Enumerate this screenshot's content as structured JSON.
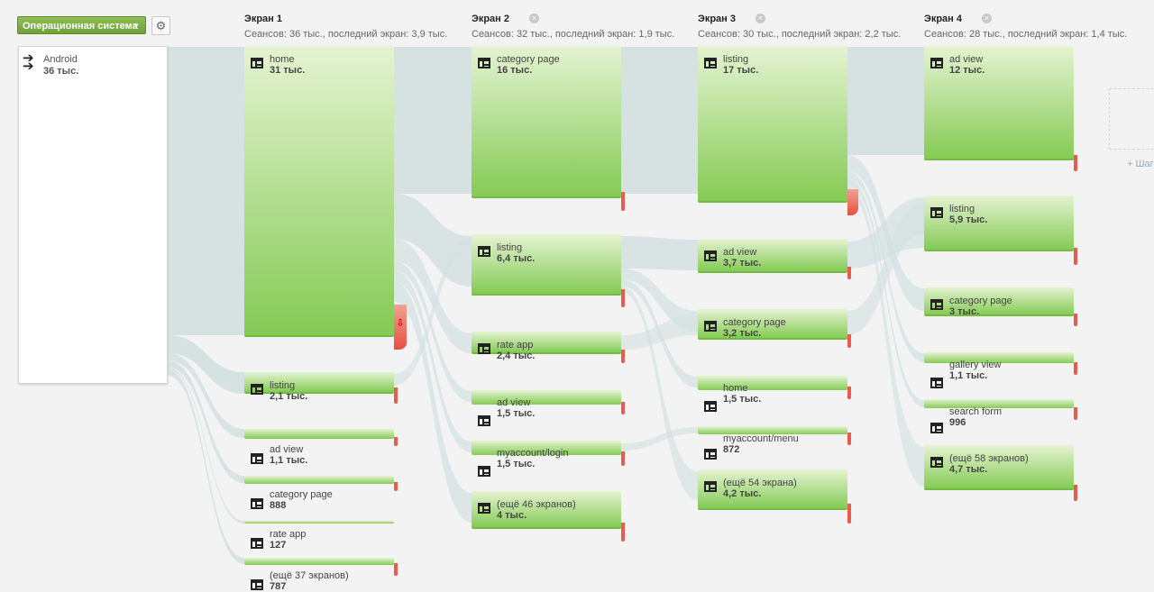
{
  "toolbar": {
    "dimension_label": "Операционная система",
    "settings_icon": "gear-icon"
  },
  "source": {
    "name": "Android",
    "value": "36 тыс."
  },
  "columns": [
    {
      "title": "Экран 1",
      "subtitle": "Сеансов: 36 тыс., последний экран: 3,9 тыс.",
      "closable": false
    },
    {
      "title": "Экран 2",
      "subtitle": "Сеансов: 32 тыс., последний экран: 1,9 тыс.",
      "closable": true
    },
    {
      "title": "Экран 3",
      "subtitle": "Сеансов: 30 тыс., последний экран: 2,2 тыс.",
      "closable": true
    },
    {
      "title": "Экран 4",
      "subtitle": "Сеансов: 28 тыс., последний экран: 1,4 тыс.",
      "closable": true
    }
  ],
  "nodes": [
    [
      {
        "label": "home",
        "value": "31 тыс."
      },
      {
        "label": "listing",
        "value": "2,1 тыс."
      },
      {
        "label": "ad view",
        "value": "1,1 тыс."
      },
      {
        "label": "category page",
        "value": "888"
      },
      {
        "label": "rate app",
        "value": "127"
      },
      {
        "label": "(ещё 37 экранов)",
        "value": "787"
      }
    ],
    [
      {
        "label": "category page",
        "value": "16 тыс."
      },
      {
        "label": "listing",
        "value": "6,4 тыс."
      },
      {
        "label": "rate app",
        "value": "2,4 тыс."
      },
      {
        "label": "ad view",
        "value": "1,5 тыс."
      },
      {
        "label": "myaccount/login",
        "value": "1,5 тыс."
      },
      {
        "label": "(ещё 46 экранов)",
        "value": "4 тыс."
      }
    ],
    [
      {
        "label": "listing",
        "value": "17 тыс."
      },
      {
        "label": "ad view",
        "value": "3,7 тыс."
      },
      {
        "label": "category page",
        "value": "3,2 тыс."
      },
      {
        "label": "home",
        "value": "1,5 тыс."
      },
      {
        "label": "myaccount/menu",
        "value": "872"
      },
      {
        "label": "(ещё 54 экрана)",
        "value": "4,2 тыс."
      }
    ],
    [
      {
        "label": "ad view",
        "value": "12 тыс."
      },
      {
        "label": "listing",
        "value": "5,9 тыс."
      },
      {
        "label": "category page",
        "value": "3 тыс."
      },
      {
        "label": "gallery view",
        "value": "1,1 тыс."
      },
      {
        "label": "search form",
        "value": "996"
      },
      {
        "label": "(ещё 58 экранов)",
        "value": "4,7 тыс."
      }
    ]
  ],
  "add_step_label": "+ Шаг",
  "colors": {
    "node_top": "#e5f3d2",
    "node_bottom": "#85cb55",
    "dropoff": "#e85c50",
    "flow": "#d3dfe0",
    "button": "#7cb342"
  }
}
